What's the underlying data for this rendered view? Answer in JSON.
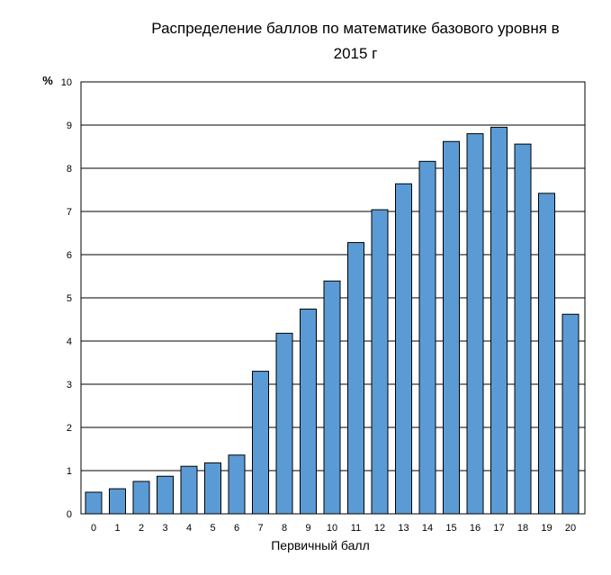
{
  "chart_data": {
    "type": "bar",
    "title": "Распределение баллов по математике базового уровня в 2015 г",
    "xlabel": "Первичный балл",
    "ylabel": "%",
    "ylim": [
      0,
      10
    ],
    "yticks": [
      "0",
      "1",
      "2",
      "3",
      "4",
      "5",
      "6",
      "7",
      "8",
      "9",
      "10"
    ],
    "categories": [
      "0",
      "1",
      "2",
      "3",
      "4",
      "5",
      "6",
      "7",
      "8",
      "9",
      "10",
      "11",
      "12",
      "13",
      "14",
      "15",
      "16",
      "17",
      "18",
      "19",
      "20"
    ],
    "values": [
      0.5,
      0.58,
      0.75,
      0.87,
      1.1,
      1.18,
      1.36,
      3.3,
      4.18,
      4.74,
      5.39,
      6.28,
      7.04,
      7.64,
      8.16,
      8.62,
      8.8,
      8.95,
      8.56,
      7.42,
      4.62
    ],
    "grid": true,
    "legend": "none",
    "bar_color": "#5B9BD5",
    "bar_edge": "#000000"
  }
}
